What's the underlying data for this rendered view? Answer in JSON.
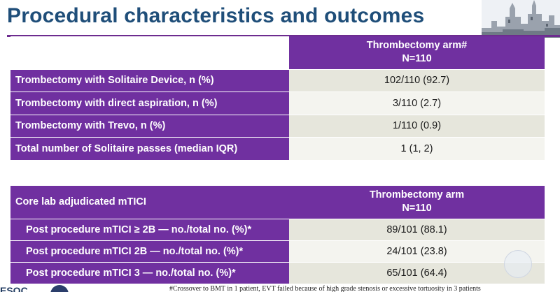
{
  "title": "Procedural characteristics and outcomes",
  "table1": {
    "header": {
      "arm": "Thrombectomy arm#",
      "n": "N=110"
    },
    "rows": [
      {
        "label": "Trombectomy with Solitaire Device, n (%)",
        "value": "102/110 (92.7)"
      },
      {
        "label": "Trombectomy with direct aspiration, n (%)",
        "value": "3/110 (2.7)"
      },
      {
        "label": "Trombectomy with Trevo, n (%)",
        "value": "1/110 (0.9)"
      },
      {
        "label": "Total number of Solitaire passes (median IQR)",
        "value": "1 (1, 2)"
      }
    ]
  },
  "table2": {
    "header": {
      "label": "Core lab adjudicated mTICI",
      "arm": "Thrombectomy arm",
      "n": "N=110"
    },
    "rows": [
      {
        "label": "Post procedure mTICI ≥ 2B — no./total no. (%)*",
        "value": "89/101 (88.1)"
      },
      {
        "label": "Post procedure mTICI 2B — no./total no. (%)*",
        "value": "24/101 (23.8)"
      },
      {
        "label": "Post procedure mTICI 3 — no./total no. (%)*",
        "value": "65/101 (64.4)"
      }
    ]
  },
  "footnote": "#Crossover to BMT in 1 patient, EVT failed because of high grade stenosis or excessive tortuosity in 3 patients",
  "logo_text": "ESOC",
  "icons": {
    "decoration": "castle-icon",
    "watermark": "watermark-icon"
  },
  "colors": {
    "header_purple": "#7030a0",
    "title_blue": "#1f4e79",
    "row_shade": "#e6e6dc",
    "row_light": "#f4f4ef"
  }
}
